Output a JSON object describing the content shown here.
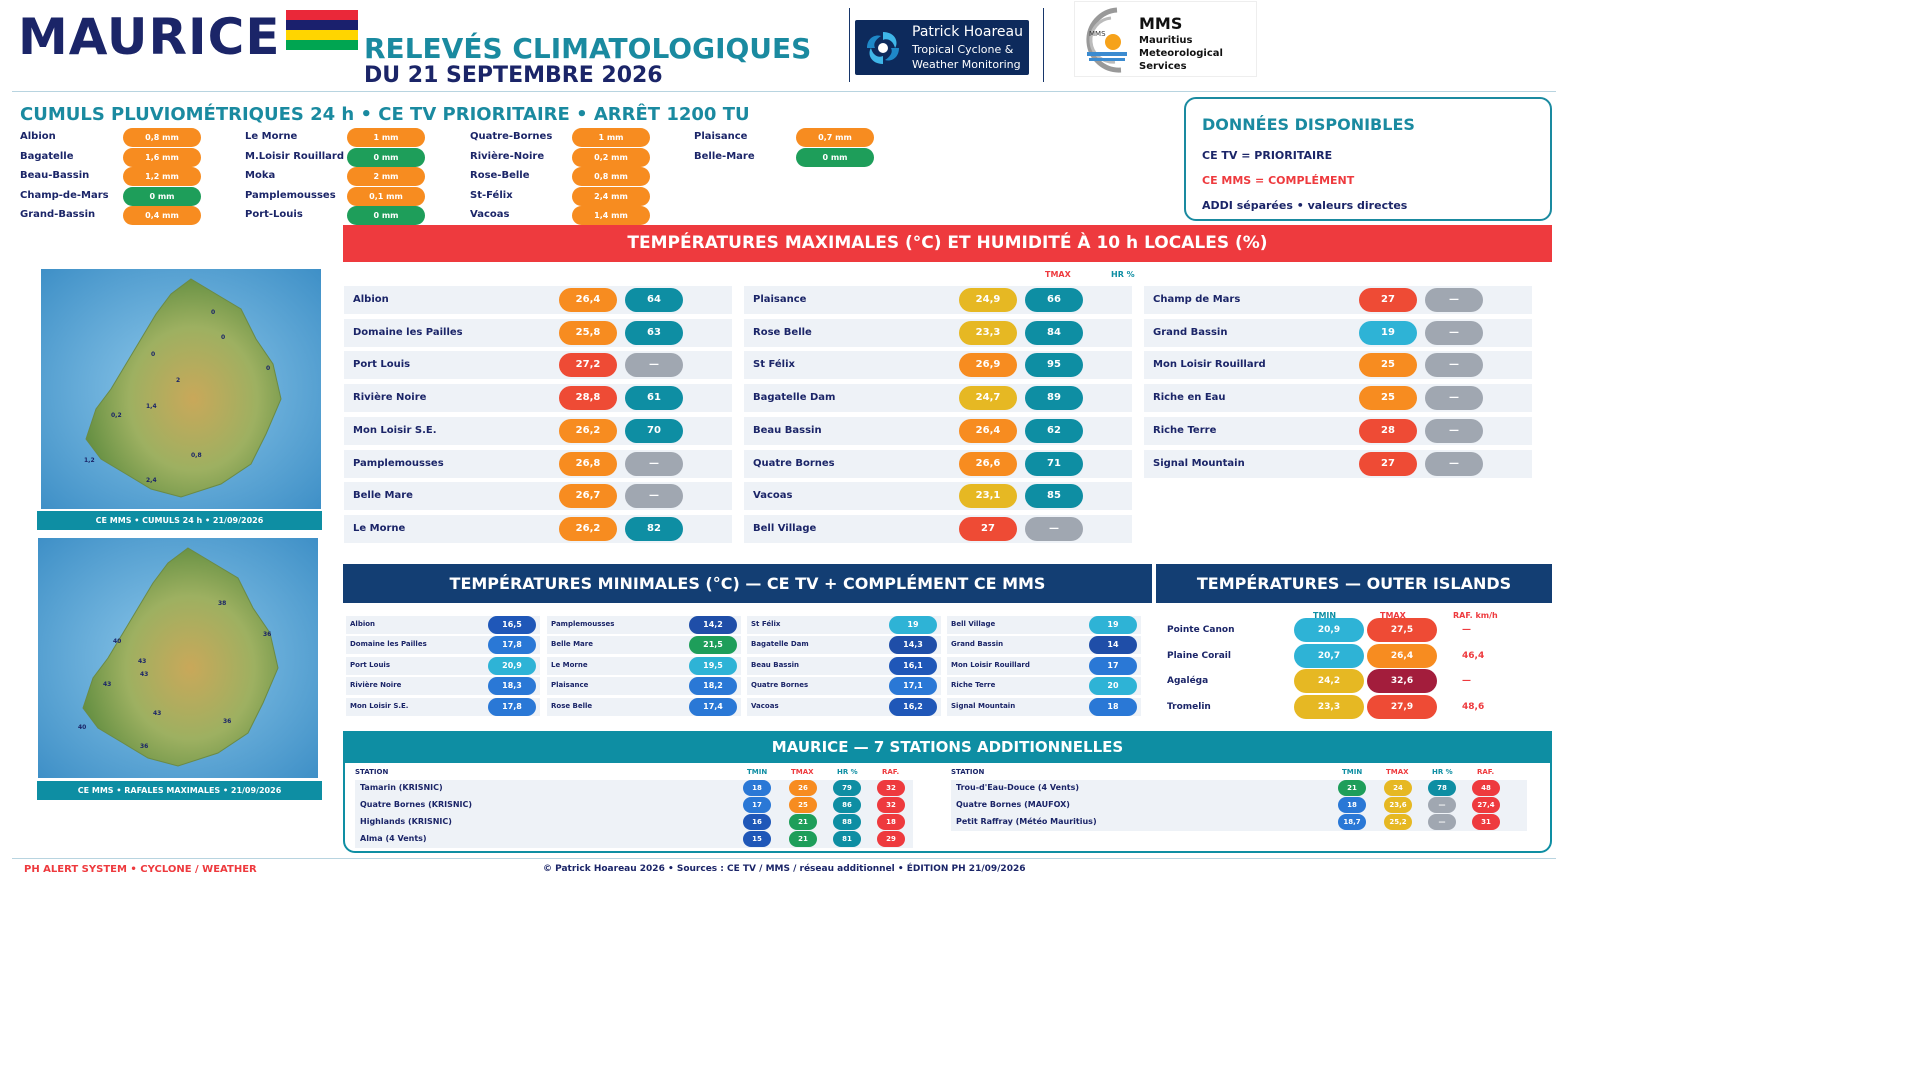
{
  "header": {
    "country": "MAURICE",
    "title": "RELEVÉS CLIMATOLOGIQUES",
    "date": "DU 21 SEPTEMBRE 2026",
    "flag_colors": [
      "#ea2839",
      "#1a206d",
      "#ffd500",
      "#00a551"
    ],
    "ph_logo": {
      "name": "Patrick Hoareau",
      "sub1": "Tropical Cyclone &",
      "sub2": "Weather Monitoring"
    },
    "mms_logo": {
      "title": "MMS",
      "l1": "Mauritius",
      "l2": "Meteorological",
      "l3": "Services",
      "mark": "MMS"
    }
  },
  "rain": {
    "title": "CUMULS PLUVIOMÉTRIQUES 24 h • CE TV PRIORITAIRE • ARRÊT 1200 TU",
    "columns": [
      [
        {
          "name": "Albion",
          "value": "0,8 mm",
          "color": "#f78c20"
        },
        {
          "name": "Bagatelle",
          "value": "1,6 mm",
          "color": "#f78c20"
        },
        {
          "name": "Beau-Bassin",
          "value": "1,2 mm",
          "color": "#f78c20"
        },
        {
          "name": "Champ-de-Mars",
          "value": "0 mm",
          "color": "#1e9e5a"
        },
        {
          "name": "Grand-Bassin",
          "value": "0,4 mm",
          "color": "#f78c20"
        }
      ],
      [
        {
          "name": "Le Morne",
          "value": "1 mm",
          "color": "#f78c20"
        },
        {
          "name": "M.Loisir Rouillard",
          "value": "0 mm",
          "color": "#1e9e5a"
        },
        {
          "name": "Moka",
          "value": "2 mm",
          "color": "#f78c20"
        },
        {
          "name": "Pamplemousses",
          "value": "0,1 mm",
          "color": "#f78c20"
        },
        {
          "name": "Port-Louis",
          "value": "0 mm",
          "color": "#1e9e5a"
        }
      ],
      [
        {
          "name": "Quatre-Bornes",
          "value": "1 mm",
          "color": "#f78c20"
        },
        {
          "name": "Rivière-Noire",
          "value": "0,2 mm",
          "color": "#f78c20"
        },
        {
          "name": "Rose-Belle",
          "value": "0,8 mm",
          "color": "#f78c20"
        },
        {
          "name": "St-Félix",
          "value": "2,4 mm",
          "color": "#f78c20"
        },
        {
          "name": "Vacoas",
          "value": "1,4 mm",
          "color": "#f78c20"
        }
      ],
      [
        {
          "name": "Plaisance",
          "value": "0,7 mm",
          "color": "#f78c20"
        },
        {
          "name": "Belle-Mare",
          "value": "0 mm",
          "color": "#1e9e5a"
        }
      ]
    ]
  },
  "available": {
    "title": "DONNÉES DISPONIBLES",
    "line1": "CE TV = PRIORITAIRE",
    "line2": "CE MMS = COMPLÉMENT",
    "line3": "ADDI séparées • valeurs directes",
    "line2_color": "#ee3a3e"
  },
  "tmax": {
    "banner": "TEMPÉRATURES MAXIMALES (°C) ET HUMIDITÉ À 10 h LOCALES (%)",
    "hdr_tmax": "TMAX",
    "hdr_hr": "HR %",
    "columns": [
      [
        {
          "name": "Albion",
          "t": "26,4",
          "tc": "#f78c20",
          "h": "64",
          "hc": "#0e8ea3"
        },
        {
          "name": "Domaine les Pailles",
          "t": "25,8",
          "tc": "#f78c20",
          "h": "63",
          "hc": "#0e8ea3"
        },
        {
          "name": "Port Louis",
          "t": "27,2",
          "tc": "#ee4b35",
          "h": "—",
          "hc": "#a0a7b1"
        },
        {
          "name": "Rivière Noire",
          "t": "28,8",
          "tc": "#ee4b35",
          "h": "61",
          "hc": "#0e8ea3"
        },
        {
          "name": "Mon Loisir S.E.",
          "t": "26,2",
          "tc": "#f78c20",
          "h": "70",
          "hc": "#0e8ea3"
        },
        {
          "name": "Pamplemousses",
          "t": "26,8",
          "tc": "#f78c20",
          "h": "—",
          "hc": "#a0a7b1"
        },
        {
          "name": "Belle Mare",
          "t": "26,7",
          "tc": "#f78c20",
          "h": "—",
          "hc": "#a0a7b1"
        },
        {
          "name": "Le Morne",
          "t": "26,2",
          "tc": "#f78c20",
          "h": "82",
          "hc": "#0e8ea3"
        }
      ],
      [
        {
          "name": "Plaisance",
          "t": "24,9",
          "tc": "#e6b823",
          "h": "66",
          "hc": "#0e8ea3"
        },
        {
          "name": "Rose Belle",
          "t": "23,3",
          "tc": "#e6b823",
          "h": "84",
          "hc": "#0e8ea3"
        },
        {
          "name": "St Félix",
          "t": "26,9",
          "tc": "#f78c20",
          "h": "95",
          "hc": "#0e8ea3"
        },
        {
          "name": "Bagatelle Dam",
          "t": "24,7",
          "tc": "#e6b823",
          "h": "89",
          "hc": "#0e8ea3"
        },
        {
          "name": "Beau Bassin",
          "t": "26,4",
          "tc": "#f78c20",
          "h": "62",
          "hc": "#0e8ea3"
        },
        {
          "name": "Quatre Bornes",
          "t": "26,6",
          "tc": "#f78c20",
          "h": "71",
          "hc": "#0e8ea3"
        },
        {
          "name": "Vacoas",
          "t": "23,1",
          "tc": "#e6b823",
          "h": "85",
          "hc": "#0e8ea3"
        },
        {
          "name": "Bell Village",
          "t": "27",
          "tc": "#ee4b35",
          "h": "—",
          "hc": "#a0a7b1"
        }
      ],
      [
        {
          "name": "Champ de Mars",
          "t": "27",
          "tc": "#ee4b35",
          "h": "—",
          "hc": "#a0a7b1"
        },
        {
          "name": "Grand Bassin",
          "t": "19",
          "tc": "#2eb3d6",
          "h": "—",
          "hc": "#a0a7b1"
        },
        {
          "name": "Mon Loisir Rouillard",
          "t": "25",
          "tc": "#f78c20",
          "h": "—",
          "hc": "#a0a7b1"
        },
        {
          "name": "Riche en Eau",
          "t": "25",
          "tc": "#f78c20",
          "h": "—",
          "hc": "#a0a7b1"
        },
        {
          "name": "Riche Terre",
          "t": "28",
          "tc": "#ee4b35",
          "h": "—",
          "hc": "#a0a7b1"
        },
        {
          "name": "Signal Mountain",
          "t": "27",
          "tc": "#ee4b35",
          "h": "—",
          "hc": "#a0a7b1"
        }
      ]
    ]
  },
  "maps": {
    "rain_caption": "CE MMS • CUMULS 24 h • 21/09/2026",
    "rain_labels": [
      "0",
      "0",
      "0",
      "0",
      "2",
      "1,4",
      "0,2",
      "0,8",
      "1,2",
      "2,4"
    ],
    "gust_caption": "CE MMS • RAFALES MAXIMALES • 21/09/2026",
    "gust_labels": [
      "38",
      "36",
      "40",
      "43",
      "43",
      "43",
      "43",
      "40",
      "36",
      "36"
    ]
  },
  "tmin": {
    "banner": "TEMPÉRATURES MINIMALES (°C) — CE TV + COMPLÉMENT CE MMS",
    "columns": [
      [
        {
          "name": "Albion",
          "v": "16,5",
          "c": "#1f57b8"
        },
        {
          "name": "Domaine les Pailles",
          "v": "17,8",
          "c": "#2a78d6"
        },
        {
          "name": "Port Louis",
          "v": "20,9",
          "c": "#2eb3d6"
        },
        {
          "name": "Rivière Noire",
          "v": "18,3",
          "c": "#2a78d6"
        },
        {
          "name": "Mon Loisir S.E.",
          "v": "17,8",
          "c": "#2a78d6"
        }
      ],
      [
        {
          "name": "Pamplemousses",
          "v": "14,2",
          "c": "#1f4ea8"
        },
        {
          "name": "Belle Mare",
          "v": "21,5",
          "c": "#1e9e5a"
        },
        {
          "name": "Le Morne",
          "v": "19,5",
          "c": "#2eb3d6"
        },
        {
          "name": "Plaisance",
          "v": "18,2",
          "c": "#2a78d6"
        },
        {
          "name": "Rose Belle",
          "v": "17,4",
          "c": "#2a78d6"
        }
      ],
      [
        {
          "name": "St Félix",
          "v": "19",
          "c": "#2eb3d6"
        },
        {
          "name": "Bagatelle Dam",
          "v": "14,3",
          "c": "#1f4ea8"
        },
        {
          "name": "Beau Bassin",
          "v": "16,1",
          "c": "#1f57b8"
        },
        {
          "name": "Quatre Bornes",
          "v": "17,1",
          "c": "#2a78d6"
        },
        {
          "name": "Vacoas",
          "v": "16,2",
          "c": "#1f57b8"
        }
      ],
      [
        {
          "name": "Bell Village",
          "v": "19",
          "c": "#2eb3d6"
        },
        {
          "name": "Grand Bassin",
          "v": "14",
          "c": "#1f4ea8"
        },
        {
          "name": "Mon Loisir Rouillard",
          "v": "17",
          "c": "#2a78d6"
        },
        {
          "name": "Riche Terre",
          "v": "20",
          "c": "#2eb3d6"
        },
        {
          "name": "Signal Mountain",
          "v": "18",
          "c": "#2a78d6"
        }
      ]
    ]
  },
  "outer": {
    "banner": "TEMPÉRATURES — OUTER ISLANDS",
    "hdr_tmin": "TMIN",
    "hdr_tmax": "TMAX",
    "hdr_gust": "RAF. km/h",
    "rows": [
      {
        "name": "Pointe Canon",
        "tmin": "20,9",
        "tminc": "#2eb3d6",
        "tmax": "27,5",
        "tmaxc": "#ee4b35",
        "gust": "—"
      },
      {
        "name": "Plaine Corail",
        "tmin": "20,7",
        "tminc": "#2eb3d6",
        "tmax": "26,4",
        "tmaxc": "#f78c20",
        "gust": "46,4"
      },
      {
        "name": "Agaléga",
        "tmin": "24,2",
        "tminc": "#e6b823",
        "tmax": "32,6",
        "tmaxc": "#a31d3c",
        "gust": "—"
      },
      {
        "name": "Tromelin",
        "tmin": "23,3",
        "tminc": "#e6b823",
        "tmax": "27,9",
        "tmaxc": "#ee4b35",
        "gust": "48,6"
      }
    ]
  },
  "additional": {
    "banner": "MAURICE — 7 STATIONS ADDITIONNELLES",
    "hdr_station": "STATION",
    "hdr_tmin": "TMIN",
    "hdr_tmax": "TMAX",
    "hdr_hr": "HR %",
    "hdr_gust": "RAF.",
    "left": [
      {
        "name": "Tamarin (KRISNIC)",
        "tmin": "18",
        "tminc": "#2a78d6",
        "tmax": "26",
        "tmaxc": "#f78c20",
        "hr": "79",
        "hrc": "#0e8ea3",
        "gust": "32",
        "gustc": "#ee3a3e"
      },
      {
        "name": "Quatre Bornes (KRISNIC)",
        "tmin": "17",
        "tminc": "#2a78d6",
        "tmax": "25",
        "tmaxc": "#f78c20",
        "hr": "86",
        "hrc": "#0e8ea3",
        "gust": "32",
        "gustc": "#ee3a3e"
      },
      {
        "name": "Highlands (KRISNIC)",
        "tmin": "16",
        "tminc": "#1f57b8",
        "tmax": "21",
        "tmaxc": "#1e9e5a",
        "hr": "88",
        "hrc": "#0e8ea3",
        "gust": "18",
        "gustc": "#ee3a3e"
      },
      {
        "name": "Alma (4 Vents)",
        "tmin": "15",
        "tminc": "#1f57b8",
        "tmax": "21",
        "tmaxc": "#1e9e5a",
        "hr": "81",
        "hrc": "#0e8ea3",
        "gust": "29",
        "gustc": "#ee3a3e"
      }
    ],
    "right": [
      {
        "name": "Trou-d'Eau-Douce (4 Vents)",
        "tmin": "21",
        "tminc": "#1e9e5a",
        "tmax": "24",
        "tmaxc": "#e6b823",
        "hr": "78",
        "hrc": "#0e8ea3",
        "gust": "48",
        "gustc": "#ee3a3e"
      },
      {
        "name": "Quatre Bornes (MAUFOX)",
        "tmin": "18",
        "tminc": "#2a78d6",
        "tmax": "23,6",
        "tmaxc": "#e6b823",
        "hr": "—",
        "hrc": "#a0a7b1",
        "gust": "27,4",
        "gustc": "#ee3a3e"
      },
      {
        "name": "Petit Raffray (Météo Mauritius)",
        "tmin": "18,7",
        "tminc": "#2a78d6",
        "tmax": "25,2",
        "tmaxc": "#e6b823",
        "hr": "—",
        "hrc": "#a0a7b1",
        "gust": "31",
        "gustc": "#ee3a3e"
      }
    ]
  },
  "footer": {
    "left": "PH ALERT SYSTEM • CYCLONE / WEATHER",
    "center": "© Patrick Hoareau 2026 • Sources : CE TV / MMS / réseau additionnel • ÉDITION PH 21/09/2026"
  }
}
